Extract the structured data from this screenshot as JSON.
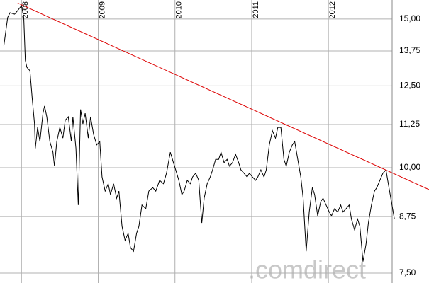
{
  "chart_data": {
    "type": "line",
    "log_scale": true,
    "grid": true,
    "watermark": ".comdirect",
    "xlim": [
      2007.72,
      2012.83
    ],
    "xticks": [
      2008,
      2009,
      2010,
      2011,
      2012
    ],
    "ylim": [
      7.3,
      15.8
    ],
    "yticks": [
      {
        "value": 7.5,
        "label": "7,50"
      },
      {
        "value": 8.75,
        "label": "8,75"
      },
      {
        "value": 10,
        "label": "10,00"
      },
      {
        "value": 11.25,
        "label": "11,25"
      },
      {
        "value": 12.5,
        "label": "12,50"
      },
      {
        "value": 13.75,
        "label": "13,75"
      },
      {
        "value": 15,
        "label": "15,00"
      }
    ],
    "series": [
      {
        "color": "#000000",
        "x": [
          2007.77,
          2007.82,
          2007.85,
          2007.91,
          2007.95,
          2008.0,
          2008.03,
          2008.05,
          2008.07,
          2008.11,
          2008.14,
          2008.17,
          2008.18,
          2008.21,
          2008.24,
          2008.28,
          2008.3,
          2008.33,
          2008.37,
          2008.41,
          2008.43,
          2008.46,
          2008.5,
          2008.54,
          2008.57,
          2008.61,
          2008.65,
          2008.67,
          2008.71,
          2008.74,
          2008.77,
          2008.8,
          2008.83,
          2008.87,
          2008.9,
          2008.94,
          2008.98,
          2009.02,
          2009.05,
          2009.09,
          2009.13,
          2009.16,
          2009.2,
          2009.24,
          2009.27,
          2009.31,
          2009.35,
          2009.39,
          2009.42,
          2009.46,
          2009.5,
          2009.53,
          2009.57,
          2009.62,
          2009.66,
          2009.71,
          2009.75,
          2009.8,
          2009.85,
          2009.89,
          2009.94,
          2009.98,
          2010.01,
          2010.05,
          2010.09,
          2010.12,
          2010.16,
          2010.2,
          2010.23,
          2010.27,
          2010.31,
          2010.35,
          2010.38,
          2010.42,
          2010.46,
          2010.49,
          2010.53,
          2010.57,
          2010.6,
          2010.64,
          2010.68,
          2010.71,
          2010.75,
          2010.79,
          2010.83,
          2010.86,
          2010.9,
          2010.94,
          2010.97,
          2011.01,
          2011.05,
          2011.08,
          2011.12,
          2011.16,
          2011.19,
          2011.23,
          2011.27,
          2011.31,
          2011.34,
          2011.38,
          2011.42,
          2011.45,
          2011.49,
          2011.53,
          2011.56,
          2011.6,
          2011.64,
          2011.67,
          2011.71,
          2011.75,
          2011.79,
          2011.82,
          2011.86,
          2011.9,
          2011.93,
          2011.97,
          2012.01,
          2012.04,
          2012.08,
          2012.12,
          2012.16,
          2012.19,
          2012.23,
          2012.27,
          2012.3,
          2012.34,
          2012.38,
          2012.41,
          2012.45,
          2012.49,
          2012.52,
          2012.56,
          2012.6,
          2012.63,
          2012.67,
          2012.71,
          2012.75,
          2012.78,
          2012.82,
          2012.86
        ],
        "values": [
          13.94,
          15.06,
          15.26,
          15.2,
          15.35,
          15.56,
          15.06,
          13.41,
          13.15,
          13.03,
          12.06,
          11.27,
          10.54,
          11.16,
          10.74,
          11.6,
          11.83,
          11.49,
          10.74,
          10.43,
          10.04,
          10.74,
          11.16,
          10.84,
          11.38,
          11.49,
          10.74,
          11.49,
          10.54,
          9.03,
          11.72,
          11.27,
          11.6,
          10.84,
          11.49,
          10.95,
          10.64,
          10.74,
          9.75,
          9.38,
          9.57,
          9.29,
          9.57,
          9.2,
          9.38,
          8.52,
          8.2,
          8.36,
          8.04,
          7.96,
          8.36,
          8.52,
          9.03,
          8.94,
          9.38,
          9.47,
          9.38,
          9.66,
          9.57,
          9.85,
          10.43,
          10.14,
          9.94,
          9.66,
          9.29,
          9.38,
          9.66,
          9.57,
          9.75,
          9.85,
          9.66,
          8.6,
          9.2,
          9.57,
          9.75,
          9.94,
          10.23,
          10.23,
          10.43,
          10.14,
          10.23,
          10.04,
          10.14,
          10.37,
          10.14,
          9.94,
          9.85,
          9.75,
          9.85,
          9.75,
          9.66,
          9.75,
          9.94,
          9.75,
          9.94,
          10.64,
          11.06,
          10.84,
          11.16,
          11.16,
          10.23,
          10.04,
          10.43,
          10.64,
          10.74,
          10.23,
          9.75,
          9.2,
          7.96,
          8.86,
          9.47,
          9.29,
          8.77,
          9.12,
          9.2,
          9.03,
          8.86,
          8.77,
          8.94,
          8.86,
          9.03,
          8.86,
          8.94,
          9.03,
          8.69,
          8.44,
          8.69,
          8.52,
          7.74,
          8.12,
          8.6,
          9.03,
          9.38,
          9.47,
          9.66,
          9.85,
          9.94,
          9.57,
          9.12,
          8.69
        ]
      },
      {
        "color": "#dd0000",
        "x": [
          2007.95,
          2013.31
        ],
        "values": [
          15.67,
          9.42
        ]
      }
    ]
  }
}
